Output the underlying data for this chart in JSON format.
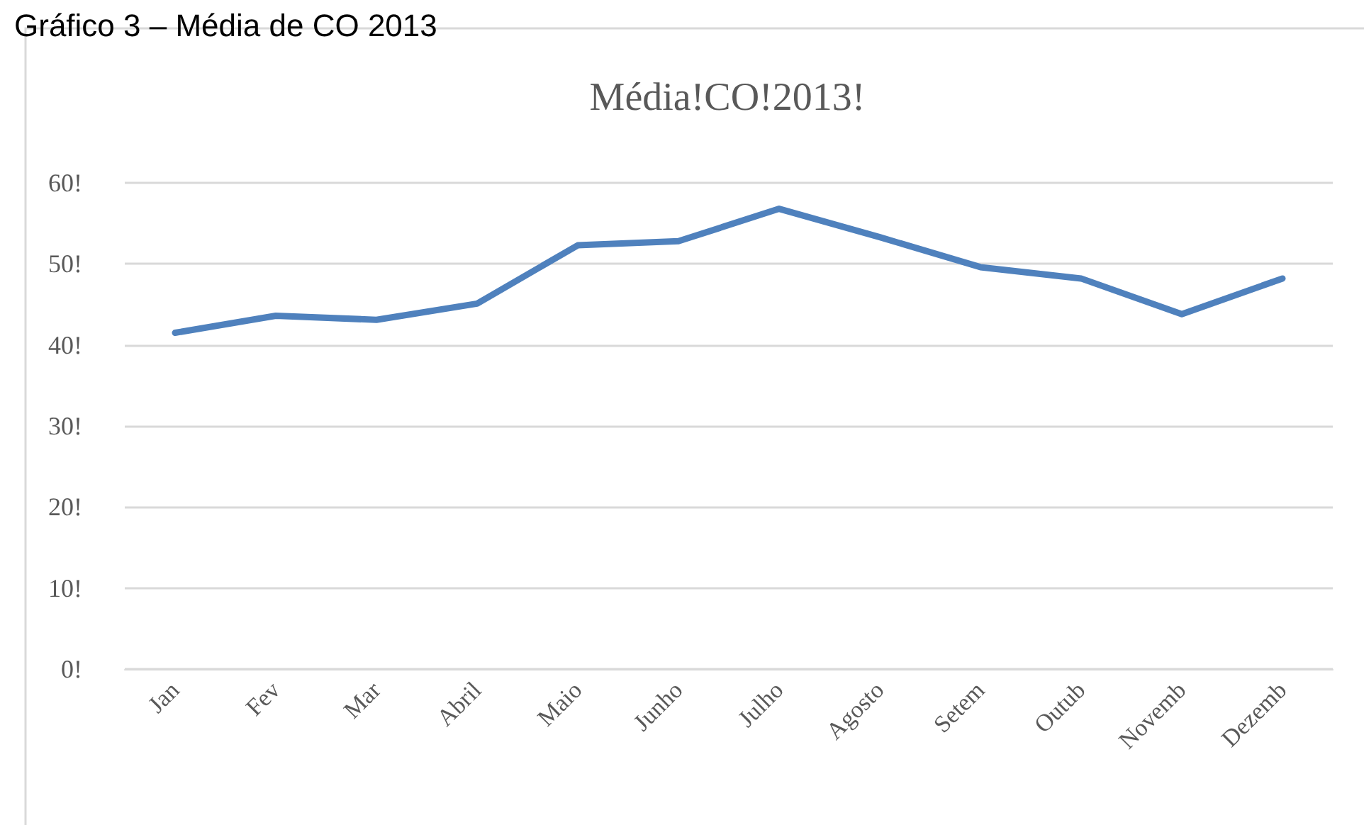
{
  "chart_data": {
    "type": "line",
    "title": "Média!CO!2013!",
    "annotations": [
      "Gráfico 3 – Média de CO 2013"
    ],
    "categories": [
      "Jan",
      "Fev",
      "Mar",
      "Abril",
      "Maio",
      "Junho",
      "Julho",
      "Agosto",
      "Setem",
      "Outub",
      "Novemb",
      "Dezemb"
    ],
    "series": [
      {
        "color": "#4f81bd",
        "values": [
          41.5,
          43.6,
          43.1,
          45.1,
          52.3,
          52.8,
          56.8,
          53.3,
          49.6,
          48.2,
          43.8,
          48.2
        ]
      }
    ],
    "ylim": [
      0,
      60
    ],
    "yticks": [
      {
        "value": 0,
        "label": "0!"
      },
      {
        "value": 10,
        "label": "10!"
      },
      {
        "value": 20,
        "label": "20!"
      },
      {
        "value": 30,
        "label": "30!"
      },
      {
        "value": 40,
        "label": "40!"
      },
      {
        "value": 50,
        "label": "50!"
      },
      {
        "value": 60,
        "label": "60!"
      }
    ],
    "grid": "y",
    "marker": "none",
    "line_style": "solid"
  }
}
